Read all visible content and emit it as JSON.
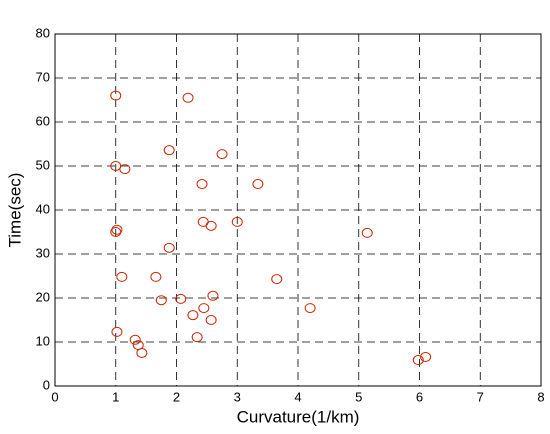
{
  "chart_data": {
    "type": "scatter",
    "x_label": "Curvature(1/km)",
    "y_label": "Time(sec)",
    "xlim": [
      0,
      8
    ],
    "ylim": [
      0,
      80
    ],
    "xticks": [
      0,
      1,
      2,
      3,
      4,
      5,
      6,
      7,
      8
    ],
    "yticks": [
      0,
      10,
      20,
      30,
      40,
      50,
      60,
      70,
      80
    ],
    "grid": true,
    "color": "#cc2200",
    "x": [
      1.0,
      2.19,
      1.88,
      2.75,
      1.0,
      1.15,
      2.42,
      3.34,
      2.44,
      3.0,
      2.57,
      1.02,
      1.0,
      5.14,
      1.88,
      1.66,
      1.1,
      3.65,
      1.75,
      2.07,
      2.6,
      2.45,
      4.2,
      2.27,
      2.57,
      1.02,
      2.34,
      1.32,
      1.37,
      1.43,
      6.1,
      5.98
    ],
    "y": [
      66,
      65.5,
      53.6,
      52.7,
      50,
      49.3,
      45.9,
      45.9,
      37.3,
      37.3,
      36.4,
      35.5,
      35,
      34.8,
      31.4,
      24.8,
      24.8,
      24.3,
      19.5,
      19.8,
      20.5,
      17.7,
      17.7,
      16.1,
      15,
      12.3,
      11.1,
      10.5,
      9.3,
      7.5,
      6.6,
      5.9
    ]
  }
}
